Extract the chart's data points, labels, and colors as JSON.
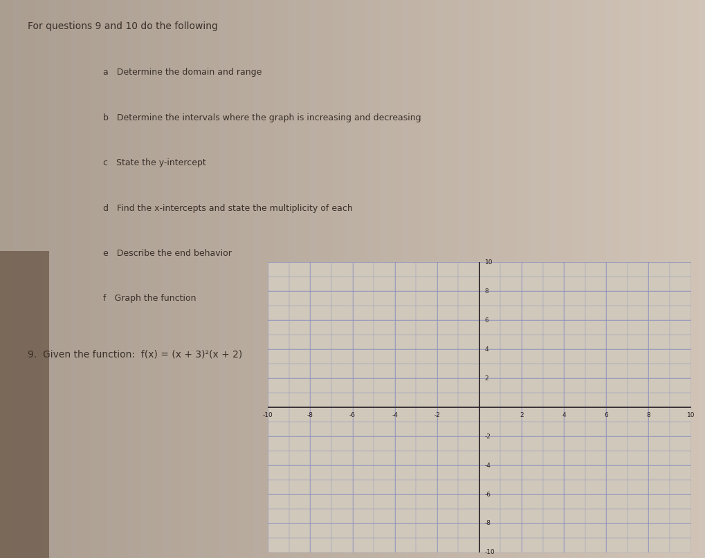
{
  "bg_color": "#b8a898",
  "paper_color": "#d8cfc4",
  "paper_left_color": "#c8b8a8",
  "text_color": "#3a3028",
  "title_text": "For questions 9 and 10 do the following",
  "instructions": [
    "a   Determine the domain and range",
    "b   Determine the intervals where the graph is increasing and decreasing",
    "c   State the y-intercept",
    "d   Find the x-intercepts and state the multiplicity of each",
    "e   Describe the end behavior",
    "f   Graph the function"
  ],
  "question_text": "9.  Given the function:  f(x) = (x + 3)²(x + 2)",
  "grid_xlim": [
    -10,
    10
  ],
  "grid_ylim": [
    -10,
    10
  ],
  "grid_major_ticks": [
    -10,
    -8,
    -6,
    -4,
    -2,
    0,
    2,
    4,
    6,
    8,
    10
  ],
  "grid_minor_ticks_step": 1,
  "grid_color": "#9090bb",
  "grid_bg": "#cfc8bb",
  "axis_color": "#2a2020",
  "font_size_title": 10,
  "font_size_instr": 9,
  "font_size_question": 10,
  "font_size_tick": 6.5,
  "grid_linewidth_major": 0.5,
  "grid_linewidth_minor": 0.3,
  "axis_linewidth": 1.2
}
